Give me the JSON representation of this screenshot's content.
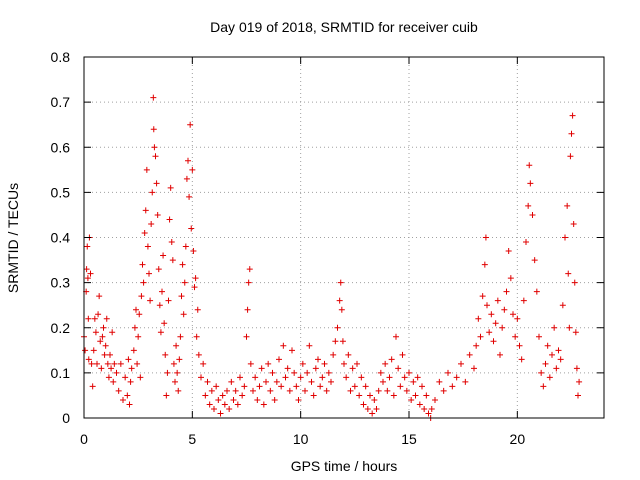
{
  "chart_data": {
    "type": "scatter",
    "title": "Day 019 of 2018, SRMTID for receiver cuib",
    "xlabel": "GPS time / hours",
    "ylabel": "SRMTID / TECUs",
    "xlim": [
      0,
      24
    ],
    "ylim": [
      0,
      0.8
    ],
    "xticks": [
      0,
      5,
      10,
      15,
      20
    ],
    "xtick_labels": [
      "0",
      "5",
      "10",
      "15",
      "20"
    ],
    "yticks": [
      0,
      0.1,
      0.2,
      0.3,
      0.4,
      0.5,
      0.6,
      0.7,
      0.8
    ],
    "ytick_labels": [
      "0",
      "0.1",
      "0.2",
      "0.3",
      "0.4",
      "0.5",
      "0.6",
      "0.7",
      "0.8"
    ],
    "grid": true,
    "marker": "+",
    "color": "#e00000",
    "series": [
      {
        "name": "SRMTID",
        "points": [
          [
            0.0,
            0.18
          ],
          [
            0.05,
            0.15
          ],
          [
            0.1,
            0.28
          ],
          [
            0.12,
            0.33
          ],
          [
            0.15,
            0.38
          ],
          [
            0.18,
            0.31
          ],
          [
            0.2,
            0.22
          ],
          [
            0.22,
            0.13
          ],
          [
            0.25,
            0.4
          ],
          [
            0.3,
            0.32
          ],
          [
            0.35,
            0.12
          ],
          [
            0.4,
            0.07
          ],
          [
            0.45,
            0.15
          ],
          [
            0.5,
            0.22
          ],
          [
            0.55,
            0.19
          ],
          [
            0.6,
            0.12
          ],
          [
            0.65,
            0.23
          ],
          [
            0.7,
            0.27
          ],
          [
            0.75,
            0.17
          ],
          [
            0.8,
            0.11
          ],
          [
            0.85,
            0.18
          ],
          [
            0.9,
            0.2
          ],
          [
            0.95,
            0.14
          ],
          [
            1.0,
            0.16
          ],
          [
            1.05,
            0.22
          ],
          [
            1.1,
            0.12
          ],
          [
            1.15,
            0.09
          ],
          [
            1.2,
            0.14
          ],
          [
            1.25,
            0.11
          ],
          [
            1.3,
            0.19
          ],
          [
            1.35,
            0.08
          ],
          [
            1.4,
            0.12
          ],
          [
            1.5,
            0.1
          ],
          [
            1.6,
            0.06
          ],
          [
            1.7,
            0.12
          ],
          [
            1.8,
            0.04
          ],
          [
            1.9,
            0.09
          ],
          [
            2.0,
            0.05
          ],
          [
            2.05,
            0.13
          ],
          [
            2.1,
            0.03
          ],
          [
            2.15,
            0.08
          ],
          [
            2.2,
            0.11
          ],
          [
            2.3,
            0.15
          ],
          [
            2.35,
            0.2
          ],
          [
            2.4,
            0.24
          ],
          [
            2.45,
            0.12
          ],
          [
            2.5,
            0.18
          ],
          [
            2.55,
            0.23
          ],
          [
            2.6,
            0.09
          ],
          [
            2.65,
            0.27
          ],
          [
            2.7,
            0.34
          ],
          [
            2.75,
            0.3
          ],
          [
            2.8,
            0.41
          ],
          [
            2.85,
            0.46
          ],
          [
            2.9,
            0.55
          ],
          [
            2.95,
            0.38
          ],
          [
            3.0,
            0.32
          ],
          [
            3.05,
            0.26
          ],
          [
            3.1,
            0.43
          ],
          [
            3.15,
            0.5
          ],
          [
            3.2,
            0.71
          ],
          [
            3.22,
            0.64
          ],
          [
            3.25,
            0.6
          ],
          [
            3.3,
            0.58
          ],
          [
            3.35,
            0.52
          ],
          [
            3.4,
            0.45
          ],
          [
            3.45,
            0.33
          ],
          [
            3.5,
            0.25
          ],
          [
            3.55,
            0.19
          ],
          [
            3.6,
            0.28
          ],
          [
            3.65,
            0.36
          ],
          [
            3.7,
            0.21
          ],
          [
            3.75,
            0.14
          ],
          [
            3.8,
            0.05
          ],
          [
            3.85,
            0.1
          ],
          [
            3.9,
            0.26
          ],
          [
            3.95,
            0.44
          ],
          [
            4.0,
            0.51
          ],
          [
            4.05,
            0.39
          ],
          [
            4.1,
            0.35
          ],
          [
            4.15,
            0.12
          ],
          [
            4.2,
            0.08
          ],
          [
            4.25,
            0.16
          ],
          [
            4.3,
            0.1
          ],
          [
            4.35,
            0.06
          ],
          [
            4.4,
            0.13
          ],
          [
            4.45,
            0.18
          ],
          [
            4.5,
            0.27
          ],
          [
            4.55,
            0.34
          ],
          [
            4.6,
            0.23
          ],
          [
            4.65,
            0.3
          ],
          [
            4.7,
            0.38
          ],
          [
            4.75,
            0.53
          ],
          [
            4.8,
            0.57
          ],
          [
            4.85,
            0.49
          ],
          [
            4.9,
            0.65
          ],
          [
            4.95,
            0.42
          ],
          [
            5.0,
            0.55
          ],
          [
            5.05,
            0.37
          ],
          [
            5.1,
            0.29
          ],
          [
            5.15,
            0.31
          ],
          [
            5.2,
            0.18
          ],
          [
            5.25,
            0.24
          ],
          [
            5.3,
            0.14
          ],
          [
            5.4,
            0.09
          ],
          [
            5.5,
            0.12
          ],
          [
            5.6,
            0.05
          ],
          [
            5.7,
            0.08
          ],
          [
            5.8,
            0.03
          ],
          [
            5.9,
            0.06
          ],
          [
            6.0,
            0.02
          ],
          [
            6.1,
            0.07
          ],
          [
            6.2,
            0.04
          ],
          [
            6.3,
            0.01
          ],
          [
            6.4,
            0.05
          ],
          [
            6.5,
            0.03
          ],
          [
            6.6,
            0.06
          ],
          [
            6.7,
            0.02
          ],
          [
            6.8,
            0.08
          ],
          [
            6.9,
            0.04
          ],
          [
            7.0,
            0.06
          ],
          [
            7.1,
            0.03
          ],
          [
            7.2,
            0.09
          ],
          [
            7.3,
            0.05
          ],
          [
            7.4,
            0.07
          ],
          [
            7.5,
            0.18
          ],
          [
            7.55,
            0.24
          ],
          [
            7.6,
            0.3
          ],
          [
            7.65,
            0.33
          ],
          [
            7.7,
            0.12
          ],
          [
            7.8,
            0.06
          ],
          [
            7.9,
            0.09
          ],
          [
            8.0,
            0.04
          ],
          [
            8.1,
            0.07
          ],
          [
            8.2,
            0.11
          ],
          [
            8.3,
            0.03
          ],
          [
            8.4,
            0.08
          ],
          [
            8.5,
            0.12
          ],
          [
            8.6,
            0.06
          ],
          [
            8.7,
            0.1
          ],
          [
            8.8,
            0.04
          ],
          [
            8.9,
            0.08
          ],
          [
            9.0,
            0.13
          ],
          [
            9.1,
            0.07
          ],
          [
            9.2,
            0.16
          ],
          [
            9.3,
            0.09
          ],
          [
            9.4,
            0.11
          ],
          [
            9.5,
            0.06
          ],
          [
            9.6,
            0.15
          ],
          [
            9.7,
            0.1
          ],
          [
            9.8,
            0.07
          ],
          [
            9.9,
            0.04
          ],
          [
            10.0,
            0.09
          ],
          [
            10.1,
            0.12
          ],
          [
            10.2,
            0.06
          ],
          [
            10.3,
            0.1
          ],
          [
            10.4,
            0.16
          ],
          [
            10.5,
            0.08
          ],
          [
            10.6,
            0.05
          ],
          [
            10.7,
            0.11
          ],
          [
            10.8,
            0.13
          ],
          [
            10.9,
            0.07
          ],
          [
            11.0,
            0.09
          ],
          [
            11.1,
            0.12
          ],
          [
            11.2,
            0.06
          ],
          [
            11.3,
            0.1
          ],
          [
            11.4,
            0.08
          ],
          [
            11.5,
            0.14
          ],
          [
            11.6,
            0.17
          ],
          [
            11.7,
            0.2
          ],
          [
            11.8,
            0.26
          ],
          [
            11.85,
            0.3
          ],
          [
            11.9,
            0.24
          ],
          [
            11.95,
            0.17
          ],
          [
            12.0,
            0.12
          ],
          [
            12.1,
            0.09
          ],
          [
            12.2,
            0.14
          ],
          [
            12.3,
            0.06
          ],
          [
            12.4,
            0.11
          ],
          [
            12.5,
            0.07
          ],
          [
            12.6,
            0.12
          ],
          [
            12.7,
            0.05
          ],
          [
            12.8,
            0.09
          ],
          [
            12.9,
            0.03
          ],
          [
            13.0,
            0.07
          ],
          [
            13.1,
            0.02
          ],
          [
            13.2,
            0.05
          ],
          [
            13.3,
            0.01
          ],
          [
            13.4,
            0.04
          ],
          [
            13.5,
            0.02
          ],
          [
            13.6,
            0.06
          ],
          [
            13.7,
            0.1
          ],
          [
            13.8,
            0.08
          ],
          [
            13.9,
            0.12
          ],
          [
            14.0,
            0.06
          ],
          [
            14.1,
            0.09
          ],
          [
            14.2,
            0.13
          ],
          [
            14.3,
            0.05
          ],
          [
            14.4,
            0.18
          ],
          [
            14.5,
            0.11
          ],
          [
            14.6,
            0.07
          ],
          [
            14.7,
            0.14
          ],
          [
            14.8,
            0.09
          ],
          [
            14.9,
            0.06
          ],
          [
            15.0,
            0.1
          ],
          [
            15.1,
            0.04
          ],
          [
            15.2,
            0.08
          ],
          [
            15.3,
            0.05
          ],
          [
            15.4,
            0.09
          ],
          [
            15.5,
            0.03
          ],
          [
            15.6,
            0.07
          ],
          [
            15.7,
            0.02
          ],
          [
            15.8,
            0.05
          ],
          [
            15.9,
            0.01
          ],
          [
            16.0,
            0.0
          ],
          [
            16.05,
            0.02
          ],
          [
            16.2,
            0.04
          ],
          [
            16.4,
            0.08
          ],
          [
            16.6,
            0.06
          ],
          [
            16.8,
            0.1
          ],
          [
            17.0,
            0.07
          ],
          [
            17.2,
            0.09
          ],
          [
            17.4,
            0.12
          ],
          [
            17.6,
            0.08
          ],
          [
            17.8,
            0.14
          ],
          [
            18.0,
            0.11
          ],
          [
            18.1,
            0.16
          ],
          [
            18.2,
            0.22
          ],
          [
            18.3,
            0.18
          ],
          [
            18.4,
            0.27
          ],
          [
            18.5,
            0.34
          ],
          [
            18.55,
            0.4
          ],
          [
            18.6,
            0.25
          ],
          [
            18.7,
            0.19
          ],
          [
            18.8,
            0.23
          ],
          [
            18.9,
            0.17
          ],
          [
            19.0,
            0.21
          ],
          [
            19.1,
            0.26
          ],
          [
            19.2,
            0.14
          ],
          [
            19.3,
            0.2
          ],
          [
            19.4,
            0.24
          ],
          [
            19.5,
            0.28
          ],
          [
            19.6,
            0.37
          ],
          [
            19.7,
            0.31
          ],
          [
            19.8,
            0.23
          ],
          [
            19.9,
            0.18
          ],
          [
            20.0,
            0.22
          ],
          [
            20.1,
            0.16
          ],
          [
            20.2,
            0.13
          ],
          [
            20.3,
            0.26
          ],
          [
            20.4,
            0.39
          ],
          [
            20.5,
            0.47
          ],
          [
            20.55,
            0.56
          ],
          [
            20.6,
            0.52
          ],
          [
            20.7,
            0.45
          ],
          [
            20.8,
            0.35
          ],
          [
            20.9,
            0.28
          ],
          [
            21.0,
            0.18
          ],
          [
            21.1,
            0.1
          ],
          [
            21.2,
            0.07
          ],
          [
            21.3,
            0.12
          ],
          [
            21.4,
            0.16
          ],
          [
            21.5,
            0.09
          ],
          [
            21.6,
            0.14
          ],
          [
            21.7,
            0.2
          ],
          [
            21.8,
            0.11
          ],
          [
            21.9,
            0.15
          ],
          [
            22.0,
            0.13
          ],
          [
            22.1,
            0.25
          ],
          [
            22.2,
            0.4
          ],
          [
            22.3,
            0.47
          ],
          [
            22.35,
            0.32
          ],
          [
            22.4,
            0.2
          ],
          [
            22.45,
            0.58
          ],
          [
            22.5,
            0.63
          ],
          [
            22.55,
            0.67
          ],
          [
            22.6,
            0.43
          ],
          [
            22.65,
            0.3
          ],
          [
            22.7,
            0.19
          ],
          [
            22.75,
            0.11
          ],
          [
            22.8,
            0.05
          ],
          [
            22.85,
            0.08
          ]
        ]
      }
    ]
  }
}
